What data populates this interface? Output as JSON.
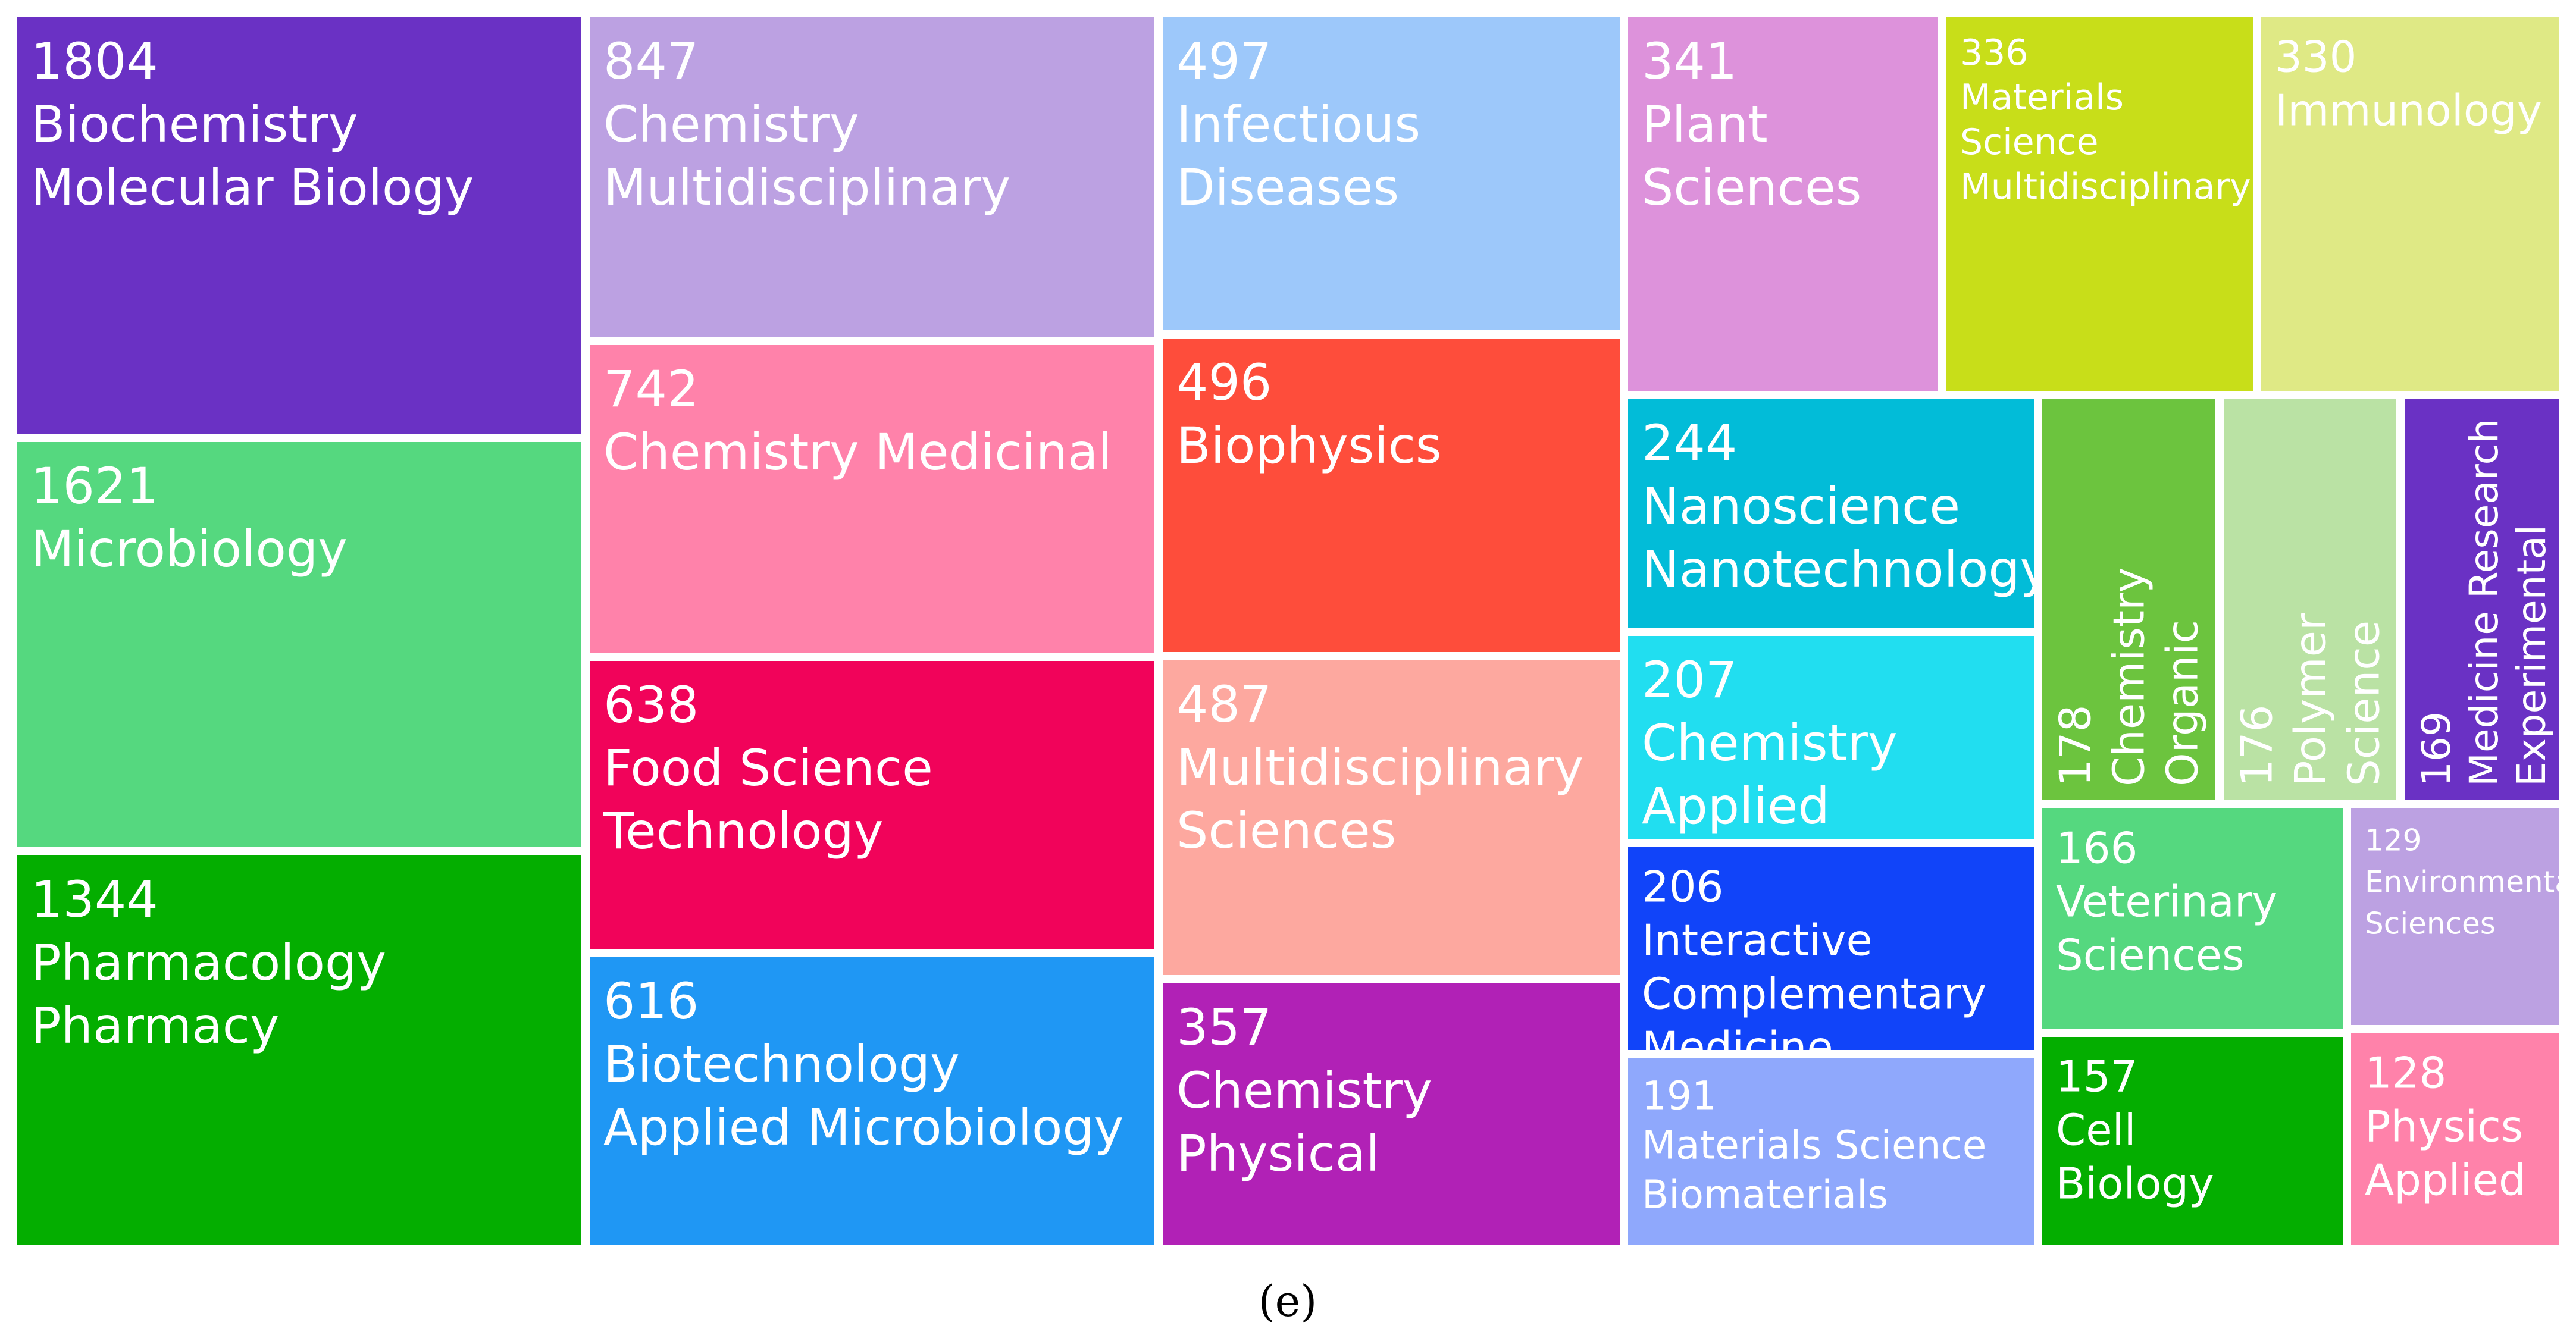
{
  "chart_data": {
    "type": "treemap",
    "caption": "(e)",
    "items": [
      {
        "value": 1804,
        "label_lines": [
          "Biochemistry",
          "Molecular Biology"
        ],
        "color": "#6a31c4"
      },
      {
        "value": 1621,
        "label_lines": [
          "Microbiology"
        ],
        "color": "#55d87f"
      },
      {
        "value": 1344,
        "label_lines": [
          "Pharmacology",
          "Pharmacy"
        ],
        "color": "#04ae00"
      },
      {
        "value": 847,
        "label_lines": [
          "Chemistry",
          "Multidisciplinary"
        ],
        "color": "#bca1e2"
      },
      {
        "value": 742,
        "label_lines": [
          "Chemistry Medicinal"
        ],
        "color": "#ff82aa"
      },
      {
        "value": 638,
        "label_lines": [
          "Food Science",
          "Technology"
        ],
        "color": "#f1035a"
      },
      {
        "value": 616,
        "label_lines": [
          "Biotechnology",
          "Applied Microbiology"
        ],
        "color": "#1f97f4"
      },
      {
        "value": 497,
        "label_lines": [
          "Infectious",
          "Diseases"
        ],
        "color": "#9dc8fa"
      },
      {
        "value": 496,
        "label_lines": [
          "Biophysics"
        ],
        "color": "#fe4d3b"
      },
      {
        "value": 487,
        "label_lines": [
          "Multidisciplinary",
          "Sciences"
        ],
        "color": "#fda89f"
      },
      {
        "value": 357,
        "label_lines": [
          "Chemistry",
          "Physical"
        ],
        "color": "#b121b6"
      },
      {
        "value": 341,
        "label_lines": [
          "Plant",
          "Sciences"
        ],
        "color": "#dd92db"
      },
      {
        "value": 336,
        "label_lines": [
          "Materials",
          "Science",
          "Multidisciplinary"
        ],
        "color": "#c8de19"
      },
      {
        "value": 330,
        "label_lines": [
          "Immunology"
        ],
        "color": "#dfe985"
      },
      {
        "value": 244,
        "label_lines": [
          "Nanoscience",
          "Nanotechnology"
        ],
        "color": "#02bcd8"
      },
      {
        "value": 207,
        "label_lines": [
          "Chemistry",
          "Applied"
        ],
        "color": "#21def0"
      },
      {
        "value": 206,
        "label_lines": [
          "Interactive",
          "Complementary",
          "Medicine"
        ],
        "color": "#1144f9"
      },
      {
        "value": 191,
        "label_lines": [
          "Materials Science",
          "Biomaterials"
        ],
        "color": "#8fa8fc"
      },
      {
        "value": 178,
        "label_lines": [
          "Chemistry",
          "Organic"
        ],
        "color": "#6cc43e"
      },
      {
        "value": 176,
        "label_lines": [
          "Polymer",
          "Science"
        ],
        "color": "#bae2a4"
      },
      {
        "value": 169,
        "label_lines": [
          "Medicine Research",
          "Experimental"
        ],
        "color": "#6a31c4"
      },
      {
        "value": 166,
        "label_lines": [
          "Veterinary",
          "Sciences"
        ],
        "color": "#55d87f"
      },
      {
        "value": 157,
        "label_lines": [
          "Cell",
          "Biology"
        ],
        "color": "#04ae00"
      },
      {
        "value": 129,
        "label_lines": [
          "Environmental",
          "Sciences"
        ],
        "color": "#bca1e2"
      },
      {
        "value": 128,
        "label_lines": [
          "Physics",
          "Applied"
        ],
        "color": "#ff82aa"
      }
    ]
  }
}
